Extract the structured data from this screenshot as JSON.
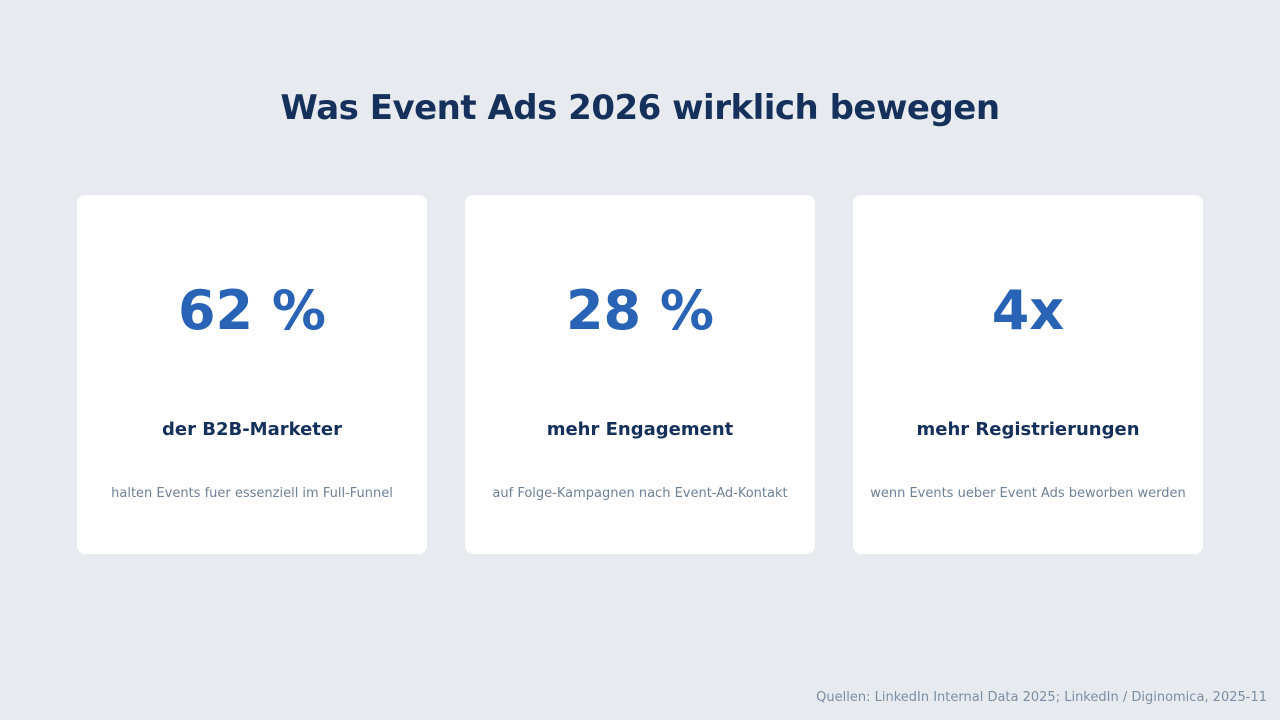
{
  "title": "Was Event Ads 2026 wirklich bewegen",
  "cards": [
    {
      "stat": "62 %",
      "label": "der B2B-Marketer",
      "description": "halten Events fuer essenziell im Full-Funnel"
    },
    {
      "stat": "28 %",
      "label": "mehr Engagement",
      "description": "auf Folge-Kampagnen nach Event-Ad-Kontakt"
    },
    {
      "stat": "4x",
      "label": "mehr Registrierungen",
      "description": "wenn Events ueber Event Ads beworben werden"
    }
  ],
  "footer": {
    "source": "Quellen: LinkedIn Internal Data 2025; LinkedIn / Diginomica, 2025-11"
  },
  "colors": {
    "background": "#e7ebef",
    "card": "#ffffff",
    "title": "#15305a",
    "stat": "#2963b6",
    "description": "#6f8197"
  }
}
